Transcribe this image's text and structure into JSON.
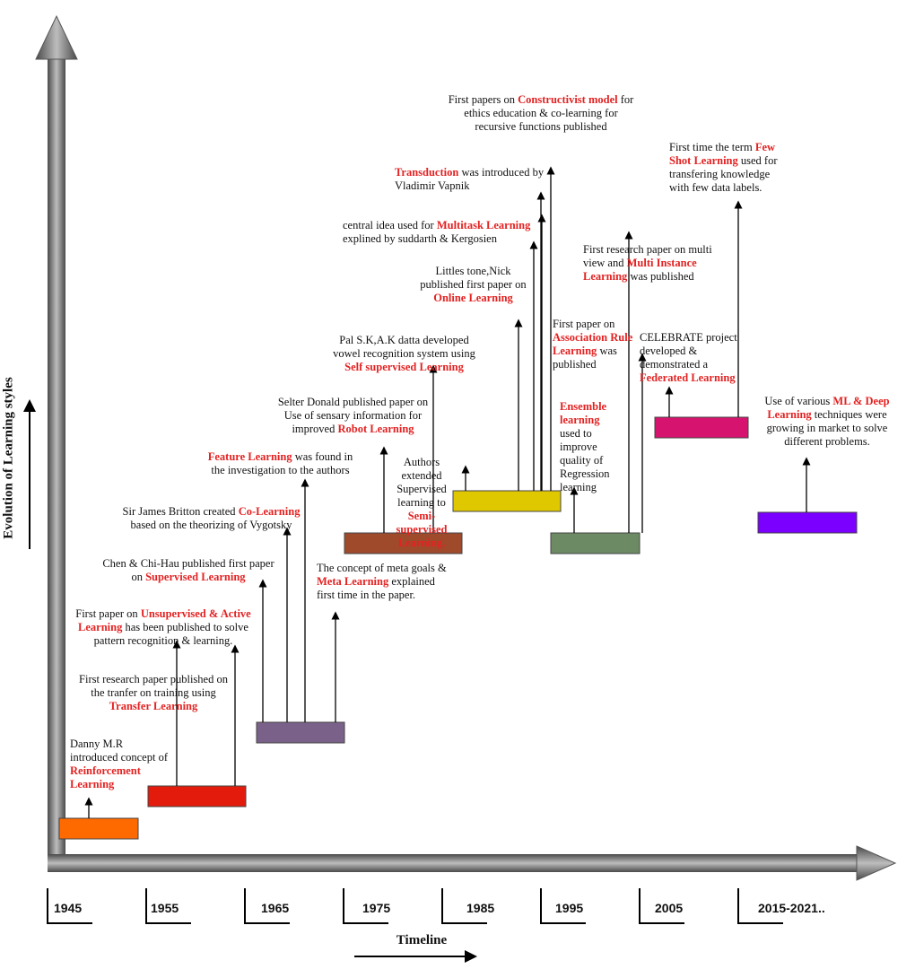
{
  "axes": {
    "y_label": "Evolution of Learning styles",
    "x_label": "Timeline"
  },
  "years": [
    "1945",
    "1955",
    "1965",
    "1975",
    "1985",
    "1995",
    "2005",
    "2015-2021.."
  ],
  "periods": [
    {
      "color": "#ff6a00"
    },
    {
      "color": "#e31b0d"
    },
    {
      "color": "#7a6189"
    },
    {
      "color": "#a04a2c"
    },
    {
      "color": "#e0c800"
    },
    {
      "color": "#6c8a64"
    },
    {
      "color": "#d6136e"
    },
    {
      "color": "#7b00ff"
    }
  ],
  "notes": [
    {
      "parts": [
        {
          "t": "Danny M.R introduced concept of "
        },
        {
          "t": "Reinforcement Learning",
          "hl": true
        }
      ]
    },
    {
      "parts": [
        {
          "t": "First research paper published on the tranfer on training using "
        },
        {
          "t": "Transfer Learning",
          "hl": true
        }
      ]
    },
    {
      "parts": [
        {
          "t": "First paper on "
        },
        {
          "t": "Unsupervised & Active Learning",
          "hl": true
        },
        {
          "t": " has been published to solve pattern recognition & learning."
        }
      ]
    },
    {
      "parts": [
        {
          "t": "Chen & Chi-Hau published first paper on "
        },
        {
          "t": "Supervised Learning",
          "hl": true
        }
      ]
    },
    {
      "parts": [
        {
          "t": "Sir James Britton  created "
        },
        {
          "t": "Co-Learning",
          "hl": true
        },
        {
          "t": " based on the theorizing of Vygotsky"
        }
      ]
    },
    {
      "parts": [
        {
          "t": "Feature Learning",
          "hl": true
        },
        {
          "t": " was found in the investigation to the authors"
        }
      ]
    },
    {
      "parts": [
        {
          "t": "The concept of meta goals & "
        },
        {
          "t": "Meta Learning",
          "hl": true
        },
        {
          "t": " explained first time in the paper."
        }
      ]
    },
    {
      "parts": [
        {
          "t": "Selter Donald published paper on Use of sensary information for improved "
        },
        {
          "t": "Robot Learning",
          "hl": true
        }
      ]
    },
    {
      "parts": [
        {
          "t": "Pal S.K,A.K datta developed vowel recognition system using "
        },
        {
          "t": "Self supervised Learning",
          "hl": true
        }
      ]
    },
    {
      "parts": [
        {
          "t": "Littles tone,Nick published first paper on "
        },
        {
          "t": "Online Learning",
          "hl": true
        }
      ]
    },
    {
      "parts": [
        {
          "t": "Authors extended Supervised learning to "
        },
        {
          "t": "Semi-supervised Learning.",
          "hl": true
        }
      ]
    },
    {
      "parts": [
        {
          "t": "central idea used for "
        },
        {
          "t": "Multitask Learning",
          "hl": true
        },
        {
          "t": " explined by suddarth & Kergosien"
        }
      ]
    },
    {
      "parts": [
        {
          "t": "Transduction",
          "hl": true
        },
        {
          "t": " was introduced by Vladimir Vapnik"
        }
      ]
    },
    {
      "parts": [
        {
          "t": "First papers on "
        },
        {
          "t": "Constructivist model",
          "hl": true
        },
        {
          "t": " for ethics education & co-learning for recursive functions published"
        }
      ]
    },
    {
      "parts": [
        {
          "t": "First paper on "
        },
        {
          "t": "Association Rule Learning",
          "hl": true
        },
        {
          "t": " was published"
        }
      ]
    },
    {
      "parts": [
        {
          "t": "Ensemble learning",
          "hl": true
        },
        {
          "t": " used to improve quality of Regression learning"
        }
      ]
    },
    {
      "parts": [
        {
          "t": "First research paper on multi view and "
        },
        {
          "t": "Multi Instance Learning",
          "hl": true
        },
        {
          "t": " was published"
        }
      ]
    },
    {
      "parts": [
        {
          "t": "CELEBRATE project developed & demonstrated a "
        },
        {
          "t": "Federated Learning",
          "hl": true
        }
      ]
    },
    {
      "parts": [
        {
          "t": "First time the term "
        },
        {
          "t": "Few Shot Learning",
          "hl": true
        },
        {
          "t": " used for transfering knowledge with few data labels."
        }
      ]
    },
    {
      "parts": [
        {
          "t": "Use of  various "
        },
        {
          "t": "ML & Deep Learning",
          "hl": true
        },
        {
          "t": " techniques were growing in market to solve different problems."
        }
      ]
    }
  ]
}
